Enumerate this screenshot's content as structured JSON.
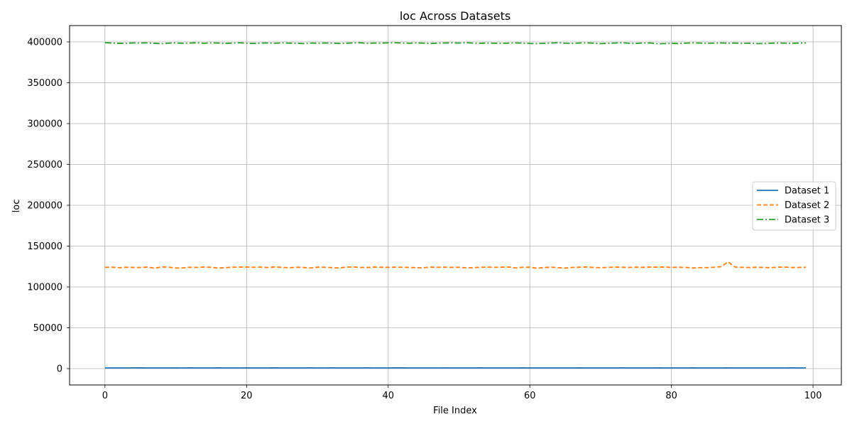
{
  "chart_data": {
    "type": "line",
    "title": "loc Across Datasets",
    "xlabel": "File Index",
    "ylabel": "loc",
    "xlim": [
      -5,
      104
    ],
    "ylim": [
      -20000,
      420000
    ],
    "xticks": [
      0,
      20,
      40,
      60,
      80,
      100
    ],
    "yticks": [
      0,
      50000,
      100000,
      150000,
      200000,
      250000,
      300000,
      350000,
      400000
    ],
    "grid": true,
    "legend_position": "center-right",
    "series": [
      {
        "name": "Dataset 1",
        "color": "#1f77b4",
        "dash": "solid",
        "x_start": 0,
        "x_step": 1,
        "values": [
          900,
          850,
          870,
          900,
          950,
          920,
          880,
          860,
          900,
          870,
          820,
          880,
          910,
          900,
          870,
          890,
          920,
          900,
          870,
          880,
          930,
          900,
          880,
          900,
          920,
          880,
          850,
          870,
          900,
          910,
          880,
          900,
          920,
          890,
          870,
          880,
          900,
          910,
          880,
          870,
          900,
          920,
          910,
          900,
          880,
          870,
          890,
          900,
          910,
          900,
          880,
          870,
          900,
          920,
          900,
          880,
          860,
          890,
          900,
          910,
          880,
          870,
          900,
          890,
          880,
          870,
          900,
          910,
          900,
          880,
          870,
          890,
          900,
          910,
          900,
          880,
          870,
          900,
          920,
          900,
          880,
          870,
          900,
          910,
          880,
          870,
          890,
          900,
          910,
          900,
          880,
          870,
          900,
          890,
          880,
          870,
          900,
          910,
          900,
          880
        ]
      },
      {
        "name": "Dataset 2",
        "color": "#ff7f0e",
        "dash": "dashed",
        "x_start": 0,
        "x_step": 1,
        "values": [
          124000,
          124200,
          123600,
          124100,
          123900,
          123800,
          124300,
          123000,
          124500,
          124200,
          123200,
          123300,
          124100,
          123900,
          124400,
          124000,
          123100,
          123600,
          124200,
          124300,
          124400,
          124100,
          124300,
          123800,
          124500,
          124000,
          123500,
          124100,
          123900,
          123200,
          124200,
          124100,
          123700,
          123200,
          124200,
          124500,
          123900,
          123800,
          124300,
          124100,
          124000,
          124200,
          124100,
          123900,
          123600,
          123500,
          124300,
          124100,
          124200,
          124000,
          124100,
          123400,
          123600,
          124100,
          124300,
          124000,
          124200,
          124400,
          123300,
          124100,
          124200,
          122900,
          123800,
          124200,
          123600,
          123100,
          123900,
          124200,
          124400,
          123900,
          123600,
          124000,
          124300,
          124100,
          123900,
          124200,
          124000,
          124300,
          124200,
          124400,
          124000,
          124100,
          124000,
          123200,
          123600,
          123700,
          124100,
          124800,
          130600,
          124300,
          124000,
          123800,
          124100,
          123900,
          123600,
          124200,
          124300,
          123800,
          123900,
          124100
        ]
      },
      {
        "name": "Dataset 3",
        "color": "#2ca02c",
        "dash": "dashdot",
        "x_start": 0,
        "x_step": 1,
        "values": [
          399000,
          398600,
          398200,
          398400,
          398700,
          398600,
          398800,
          398300,
          397800,
          398500,
          398700,
          398300,
          398600,
          398900,
          398400,
          398700,
          398600,
          398200,
          398500,
          398900,
          398400,
          398100,
          398600,
          398700,
          398400,
          398800,
          398500,
          398300,
          398000,
          398600,
          398400,
          398700,
          398500,
          398100,
          398400,
          398700,
          398900,
          398300,
          398600,
          398500,
          398800,
          398900,
          398600,
          398400,
          398700,
          398500,
          398100,
          398400,
          398700,
          398800,
          398600,
          399000,
          398500,
          398300,
          398600,
          398400,
          398200,
          398500,
          398700,
          398500,
          398100,
          397900,
          398300,
          398600,
          398900,
          398400,
          398200,
          398600,
          398800,
          398500,
          397900,
          398300,
          398600,
          398900,
          398400,
          398200,
          398600,
          398700,
          397800,
          397900,
          398200,
          398000,
          398500,
          398800,
          398600,
          398300,
          398500,
          398700,
          398400,
          398600,
          398200,
          398500,
          398000,
          397900,
          398400,
          398600,
          398500,
          398300,
          398600,
          398700
        ]
      }
    ]
  }
}
